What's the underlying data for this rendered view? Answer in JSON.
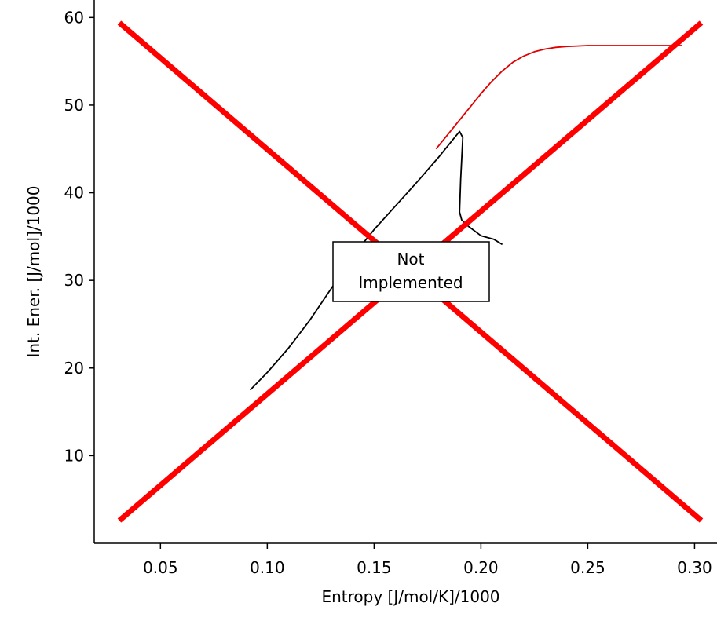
{
  "chart_data": {
    "type": "line",
    "title": "",
    "xlabel": "Entropy [J/mol/K]/1000",
    "ylabel": "Int. Ener. [J/mol]/1000",
    "xlim": [
      0.019,
      0.3105
    ],
    "ylim": [
      0,
      62
    ],
    "grid": false,
    "legend": "none",
    "x_ticks": [
      "0.05",
      "0.10",
      "0.15",
      "0.20",
      "0.25",
      "0.30"
    ],
    "x_tick_values": [
      0.05,
      0.1,
      0.15,
      0.2,
      0.25,
      0.3
    ],
    "y_ticks": [
      "10",
      "20",
      "30",
      "40",
      "50",
      "60"
    ],
    "y_tick_values": [
      10,
      20,
      30,
      40,
      50,
      60
    ],
    "series": [
      {
        "color": "#000000",
        "x": [
          0.092,
          0.1,
          0.11,
          0.12,
          0.13,
          0.14,
          0.15,
          0.16,
          0.17,
          0.18,
          0.186,
          0.19,
          0.1915,
          0.1905,
          0.19,
          0.191,
          0.194,
          0.2,
          0.206,
          0.21
        ],
        "y": [
          17.5,
          19.5,
          22.3,
          25.5,
          29.1,
          32.8,
          35.8,
          38.5,
          41.2,
          44.0,
          45.8,
          47.0,
          46.3,
          41.5,
          37.8,
          36.9,
          36.2,
          35.1,
          34.7,
          34.1
        ]
      },
      {
        "color": "#e00000",
        "x": [
          0.179,
          0.185,
          0.19,
          0.195,
          0.2,
          0.205,
          0.21,
          0.215,
          0.22,
          0.225,
          0.23,
          0.235,
          0.24,
          0.245,
          0.25,
          0.26,
          0.27,
          0.28,
          0.294
        ],
        "y": [
          45.0,
          46.8,
          48.3,
          49.8,
          51.3,
          52.7,
          53.9,
          54.9,
          55.6,
          56.1,
          56.4,
          56.6,
          56.7,
          56.75,
          56.8,
          56.8,
          56.8,
          56.8,
          56.8
        ]
      }
    ],
    "overlay": {
      "color": "#ff0000",
      "cross": true,
      "note": [
        "Not",
        "Implemented"
      ]
    }
  }
}
